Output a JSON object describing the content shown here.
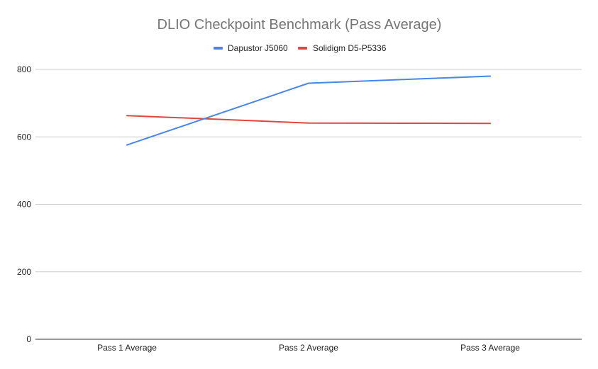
{
  "chart_data": {
    "type": "line",
    "title": "DLIO Checkpoint Benchmark (Pass Average)",
    "categories": [
      "Pass 1 Average",
      "Pass 2 Average",
      "Pass 3 Average"
    ],
    "series": [
      {
        "name": "Dapustor J5060",
        "color": "#4a86e8",
        "values": [
          576,
          759,
          780
        ]
      },
      {
        "name": "Solidigm D5-P5336",
        "color": "#e0463d",
        "values": [
          663,
          641,
          640
        ]
      }
    ],
    "ylim": [
      0,
      800
    ],
    "yticks": [
      0,
      200,
      400,
      600,
      800
    ],
    "xlabel": "",
    "ylabel": "",
    "grid": true,
    "legend_position": "top"
  }
}
